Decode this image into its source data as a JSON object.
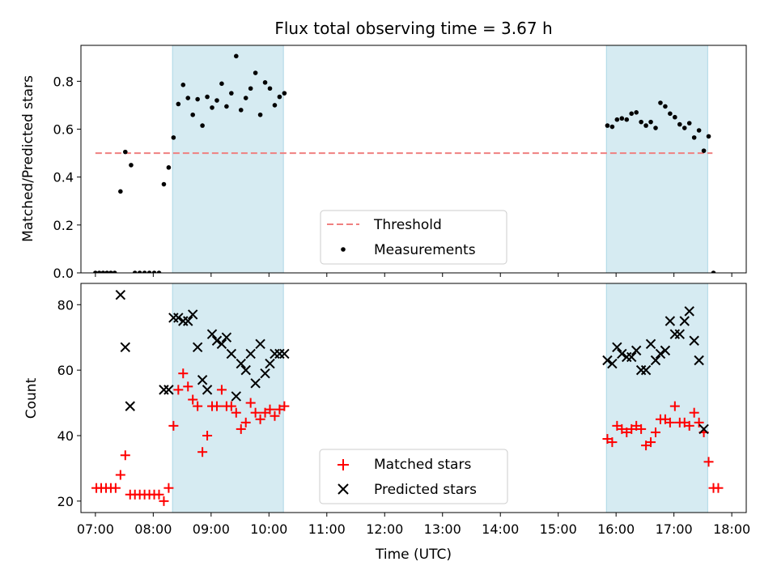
{
  "chart_data": [
    {
      "type": "scatter",
      "title": "Flux total observing time = 3.67 h",
      "xlabel": "",
      "ylabel": "Matched/Predicted stars",
      "xlim": [
        "06:45",
        "18:15"
      ],
      "ylim": [
        0,
        0.95
      ],
      "y_ticks": [
        0.0,
        0.2,
        0.4,
        0.6,
        0.8
      ],
      "y_tick_labels": [
        "0.0",
        "0.2",
        "0.4",
        "0.6",
        "0.8"
      ],
      "grid": false,
      "legend_position": "bottom-center",
      "highlight_spans": [
        {
          "start": "08:20",
          "end": "10:15",
          "color": "#add8e6"
        },
        {
          "start": "15:50",
          "end": "17:35",
          "color": "#add8e6"
        }
      ],
      "threshold": {
        "name": "Threshold",
        "value": 0.5,
        "start": "07:00",
        "end": "17:40",
        "color": "#f08080",
        "style": "dashed"
      },
      "series": [
        {
          "name": "Measurements",
          "color": "#000000",
          "points": [
            [
              "07:00",
              0
            ],
            [
              "07:04",
              0
            ],
            [
              "07:08",
              0
            ],
            [
              "07:12",
              0
            ],
            [
              "07:16",
              0
            ],
            [
              "07:20",
              0
            ],
            [
              "07:26",
              0.34
            ],
            [
              "07:31",
              0.505
            ],
            [
              "07:37",
              0.45
            ],
            [
              "07:41",
              0
            ],
            [
              "07:46",
              0
            ],
            [
              "07:51",
              0
            ],
            [
              "07:56",
              0
            ],
            [
              "08:01",
              0
            ],
            [
              "08:06",
              0
            ],
            [
              "08:11",
              0.37
            ],
            [
              "08:16",
              0.44
            ],
            [
              "08:21",
              0.565
            ],
            [
              "08:26",
              0.705
            ],
            [
              "08:31",
              0.785
            ],
            [
              "08:36",
              0.73
            ],
            [
              "08:41",
              0.66
            ],
            [
              "08:46",
              0.725
            ],
            [
              "08:51",
              0.615
            ],
            [
              "08:56",
              0.735
            ],
            [
              "09:01",
              0.69
            ],
            [
              "09:06",
              0.72
            ],
            [
              "09:11",
              0.79
            ],
            [
              "09:16",
              0.695
            ],
            [
              "09:21",
              0.75
            ],
            [
              "09:26",
              0.905
            ],
            [
              "09:31",
              0.68
            ],
            [
              "09:36",
              0.73
            ],
            [
              "09:41",
              0.77
            ],
            [
              "09:46",
              0.835
            ],
            [
              "09:51",
              0.66
            ],
            [
              "09:56",
              0.795
            ],
            [
              "10:01",
              0.77
            ],
            [
              "10:06",
              0.7
            ],
            [
              "10:11",
              0.735
            ],
            [
              "10:16",
              0.75
            ],
            [
              "15:51",
              0.615
            ],
            [
              "15:56",
              0.61
            ],
            [
              "16:01",
              0.64
            ],
            [
              "16:06",
              0.645
            ],
            [
              "16:11",
              0.64
            ],
            [
              "16:16",
              0.665
            ],
            [
              "16:21",
              0.67
            ],
            [
              "16:26",
              0.63
            ],
            [
              "16:31",
              0.615
            ],
            [
              "16:36",
              0.63
            ],
            [
              "16:41",
              0.605
            ],
            [
              "16:46",
              0.71
            ],
            [
              "16:51",
              0.695
            ],
            [
              "16:56",
              0.665
            ],
            [
              "17:01",
              0.65
            ],
            [
              "17:06",
              0.62
            ],
            [
              "17:11",
              0.605
            ],
            [
              "17:16",
              0.625
            ],
            [
              "17:21",
              0.565
            ],
            [
              "17:26",
              0.595
            ],
            [
              "17:31",
              0.51
            ],
            [
              "17:36",
              0.57
            ],
            [
              "17:41",
              0
            ]
          ]
        }
      ]
    },
    {
      "type": "scatter",
      "title": "",
      "xlabel": "Time (UTC)",
      "ylabel": "Count",
      "xlim": [
        "06:45",
        "18:15"
      ],
      "ylim": [
        16.5,
        86.5
      ],
      "x_ticks": [
        "07:00",
        "08:00",
        "09:00",
        "10:00",
        "11:00",
        "12:00",
        "13:00",
        "14:00",
        "15:00",
        "16:00",
        "17:00",
        "18:00"
      ],
      "y_ticks": [
        20,
        40,
        60,
        80
      ],
      "y_tick_labels": [
        "20",
        "40",
        "60",
        "80"
      ],
      "grid": false,
      "legend_position": "bottom-center",
      "highlight_spans": [
        {
          "start": "08:20",
          "end": "10:15",
          "color": "#add8e6"
        },
        {
          "start": "15:50",
          "end": "17:35",
          "color": "#add8e6"
        }
      ],
      "series": [
        {
          "name": "Matched stars",
          "color": "#ff0000",
          "marker": "plus",
          "points": [
            [
              "07:01",
              24
            ],
            [
              "07:06",
              24
            ],
            [
              "07:11",
              24
            ],
            [
              "07:16",
              24
            ],
            [
              "07:21",
              24
            ],
            [
              "07:26",
              28
            ],
            [
              "07:31",
              34
            ],
            [
              "07:36",
              22
            ],
            [
              "07:41",
              22
            ],
            [
              "07:46",
              22
            ],
            [
              "07:51",
              22
            ],
            [
              "07:56",
              22
            ],
            [
              "08:01",
              22
            ],
            [
              "08:06",
              22
            ],
            [
              "08:11",
              20
            ],
            [
              "08:16",
              24
            ],
            [
              "08:21",
              43
            ],
            [
              "08:26",
              54
            ],
            [
              "08:31",
              59
            ],
            [
              "08:36",
              55
            ],
            [
              "08:41",
              51
            ],
            [
              "08:46",
              49
            ],
            [
              "08:51",
              35
            ],
            [
              "08:56",
              40
            ],
            [
              "09:01",
              49
            ],
            [
              "09:06",
              49
            ],
            [
              "09:11",
              54
            ],
            [
              "09:16",
              49
            ],
            [
              "09:21",
              49
            ],
            [
              "09:26",
              47
            ],
            [
              "09:31",
              42
            ],
            [
              "09:36",
              44
            ],
            [
              "09:41",
              50
            ],
            [
              "09:46",
              47
            ],
            [
              "09:51",
              45
            ],
            [
              "09:56",
              47
            ],
            [
              "10:01",
              48
            ],
            [
              "10:06",
              46
            ],
            [
              "10:11",
              48
            ],
            [
              "10:16",
              49
            ],
            [
              "15:51",
              39
            ],
            [
              "15:56",
              38
            ],
            [
              "16:01",
              43
            ],
            [
              "16:06",
              42
            ],
            [
              "16:11",
              41
            ],
            [
              "16:16",
              42
            ],
            [
              "16:21",
              43
            ],
            [
              "16:26",
              42
            ],
            [
              "16:31",
              37
            ],
            [
              "16:36",
              38
            ],
            [
              "16:41",
              41
            ],
            [
              "16:46",
              45
            ],
            [
              "16:51",
              45
            ],
            [
              "16:56",
              44
            ],
            [
              "17:01",
              49
            ],
            [
              "17:06",
              44
            ],
            [
              "17:11",
              44
            ],
            [
              "17:16",
              43
            ],
            [
              "17:21",
              47
            ],
            [
              "17:26",
              44
            ],
            [
              "17:31",
              41
            ],
            [
              "17:36",
              32
            ],
            [
              "17:41",
              24
            ],
            [
              "17:46",
              24
            ]
          ]
        },
        {
          "name": "Predicted stars",
          "color": "#000000",
          "marker": "x",
          "points": [
            [
              "07:26",
              83
            ],
            [
              "07:31",
              67
            ],
            [
              "07:36",
              49
            ],
            [
              "08:11",
              54
            ],
            [
              "08:16",
              54
            ],
            [
              "08:21",
              76
            ],
            [
              "08:26",
              76
            ],
            [
              "08:31",
              75
            ],
            [
              "08:36",
              75
            ],
            [
              "08:41",
              77
            ],
            [
              "08:46",
              67
            ],
            [
              "08:51",
              57
            ],
            [
              "08:56",
              54
            ],
            [
              "09:01",
              71
            ],
            [
              "09:06",
              69
            ],
            [
              "09:11",
              68
            ],
            [
              "09:16",
              70
            ],
            [
              "09:21",
              65
            ],
            [
              "09:26",
              52
            ],
            [
              "09:31",
              62
            ],
            [
              "09:36",
              60
            ],
            [
              "09:41",
              65
            ],
            [
              "09:46",
              56
            ],
            [
              "09:51",
              68
            ],
            [
              "09:56",
              59
            ],
            [
              "10:01",
              62
            ],
            [
              "10:06",
              65
            ],
            [
              "10:11",
              65
            ],
            [
              "10:16",
              65
            ],
            [
              "15:51",
              63
            ],
            [
              "15:56",
              62
            ],
            [
              "16:01",
              67
            ],
            [
              "16:06",
              65
            ],
            [
              "16:11",
              64
            ],
            [
              "16:16",
              64
            ],
            [
              "16:21",
              66
            ],
            [
              "16:26",
              60
            ],
            [
              "16:31",
              60
            ],
            [
              "16:36",
              68
            ],
            [
              "16:41",
              63
            ],
            [
              "16:46",
              65
            ],
            [
              "16:51",
              66
            ],
            [
              "16:56",
              75
            ],
            [
              "17:01",
              71
            ],
            [
              "17:06",
              71
            ],
            [
              "17:11",
              75
            ],
            [
              "17:16",
              78
            ],
            [
              "17:21",
              69
            ],
            [
              "17:26",
              63
            ],
            [
              "17:31",
              42
            ]
          ]
        }
      ]
    }
  ]
}
